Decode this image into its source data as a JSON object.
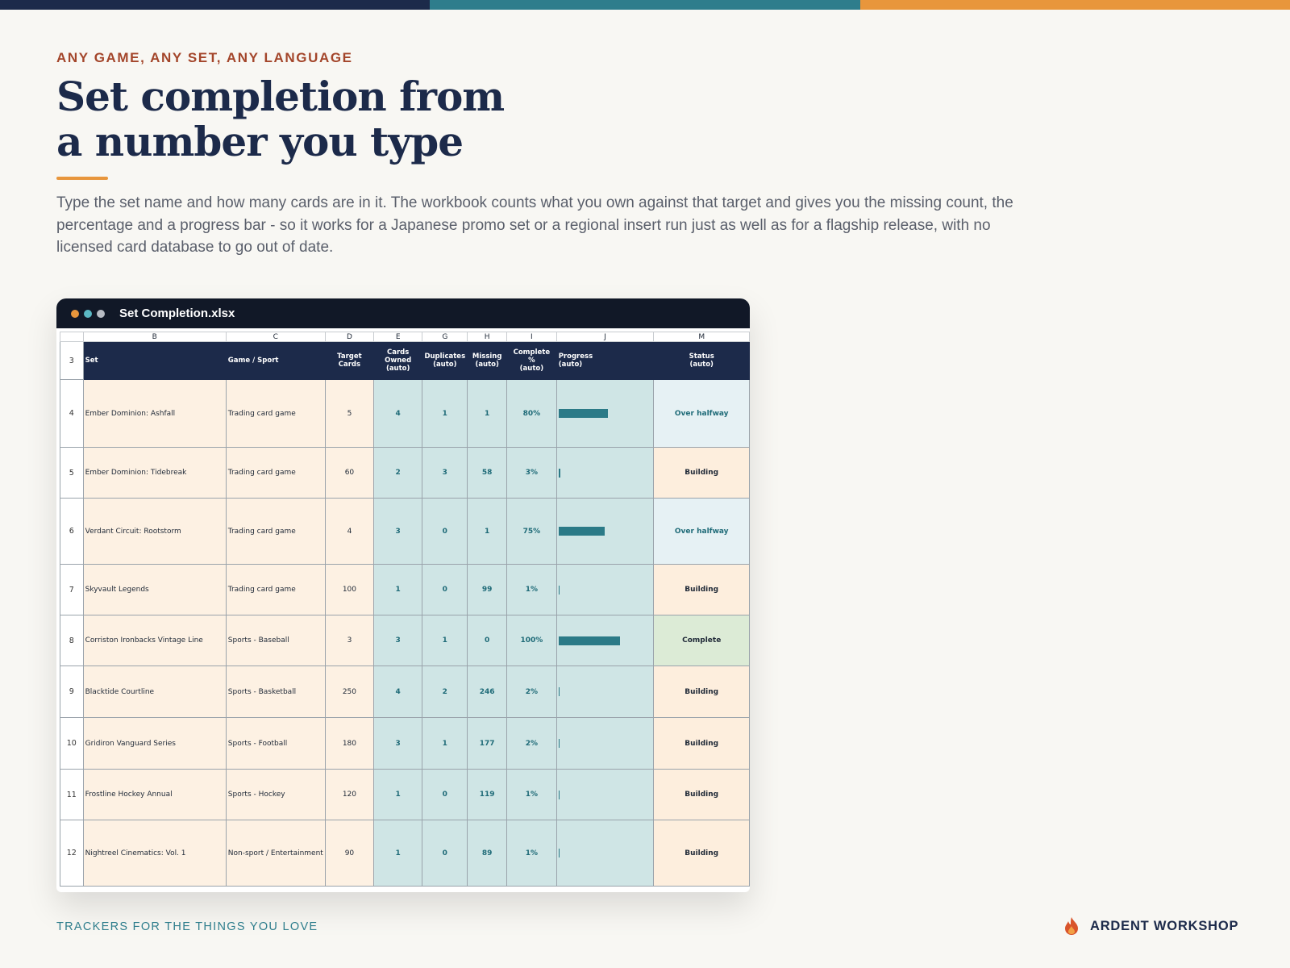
{
  "header": {
    "eyebrow": "ANY GAME, ANY SET, ANY LANGUAGE",
    "title_lines": [
      "Set completion from",
      "a number you type"
    ],
    "intro": "Type the set name and how many cards are in it. The workbook counts what you own against that target and gives you the missing count, the percentage and a progress bar - so it works for a Japanese promo set or a regional insert run just as well as for a flagship release, with no licensed card database to go out of date."
  },
  "window": {
    "filename": "Set Completion.xlsx"
  },
  "table": {
    "column_letters": [
      "B",
      "C",
      "D",
      "E",
      "G",
      "H",
      "I",
      "J",
      "M"
    ],
    "header_row_number": "3",
    "headers": [
      "Set",
      "Game / Sport",
      "Target Cards",
      "Cards Owned\n(auto)",
      "Duplicates\n(auto)",
      "Missing\n(auto)",
      "Complete %\n(auto)",
      "Progress\n(auto)",
      "Status\n(auto)"
    ],
    "rows": [
      {
        "row": "4",
        "set": "Ember Dominion: Ashfall",
        "game": "Trading card game",
        "target": "5",
        "owned": "4",
        "duplicates": "1",
        "missing": "1",
        "complete": "80%",
        "status": "Over halfway"
      },
      {
        "row": "5",
        "set": "Ember Dominion: Tidebreak",
        "game": "Trading card game",
        "target": "60",
        "owned": "2",
        "duplicates": "3",
        "missing": "58",
        "complete": "3%",
        "status": "Building"
      },
      {
        "row": "6",
        "set": "Verdant Circuit: Rootstorm",
        "game": "Trading card game",
        "target": "4",
        "owned": "3",
        "duplicates": "0",
        "missing": "1",
        "complete": "75%",
        "status": "Over halfway"
      },
      {
        "row": "7",
        "set": "Skyvault Legends",
        "game": "Trading card game",
        "target": "100",
        "owned": "1",
        "duplicates": "0",
        "missing": "99",
        "complete": "1%",
        "status": "Building"
      },
      {
        "row": "8",
        "set": "Corriston Ironbacks Vintage Line",
        "game": "Sports - Baseball",
        "target": "3",
        "owned": "3",
        "duplicates": "1",
        "missing": "0",
        "complete": "100%",
        "status": "Complete"
      },
      {
        "row": "9",
        "set": "Blacktide Courtline",
        "game": "Sports - Basketball",
        "target": "250",
        "owned": "4",
        "duplicates": "2",
        "missing": "246",
        "complete": "2%",
        "status": "Building"
      },
      {
        "row": "10",
        "set": "Gridiron Vanguard Series",
        "game": "Sports - Football",
        "target": "180",
        "owned": "3",
        "duplicates": "1",
        "missing": "177",
        "complete": "2%",
        "status": "Building"
      },
      {
        "row": "11",
        "set": "Frostline Hockey Annual",
        "game": "Sports - Hockey",
        "target": "120",
        "owned": "1",
        "duplicates": "0",
        "missing": "119",
        "complete": "1%",
        "status": "Building"
      },
      {
        "row": "12",
        "set": "Nightreel Cinematics: Vol. 1",
        "game": "Non-sport / Entertainment",
        "target": "90",
        "owned": "1",
        "duplicates": "0",
        "missing": "89",
        "complete": "1%",
        "status": "Building"
      }
    ]
  },
  "footer": {
    "tagline": "TRACKERS FOR THE THINGS YOU LOVE",
    "brand": "ARDENT WORKSHOP"
  }
}
